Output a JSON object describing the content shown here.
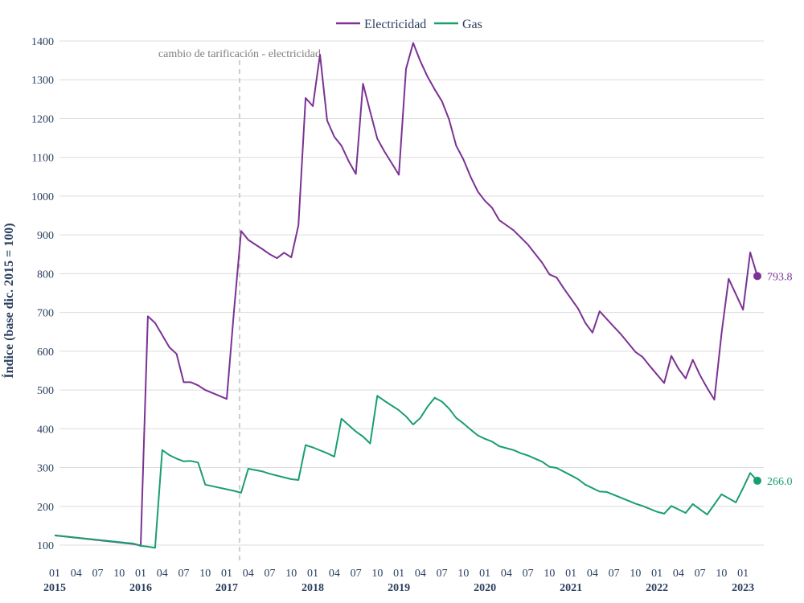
{
  "chart_data": {
    "type": "line",
    "ylabel": "Índice (base dic. 2015 = 100)",
    "ylim": [
      70,
      1420
    ],
    "y_ticks": [
      100,
      200,
      300,
      400,
      500,
      600,
      700,
      800,
      900,
      1000,
      1100,
      1200,
      1300,
      1400
    ],
    "x_start": "2015-01",
    "x_end": "2023-03",
    "x_month_ticks": [
      "01",
      "04",
      "07",
      "10"
    ],
    "x_years": [
      "2015",
      "2016",
      "2017",
      "2018",
      "2019",
      "2020",
      "2021",
      "2022",
      "2023"
    ],
    "grid": true,
    "legend_position": "top-center",
    "annotation": {
      "text": "cambio de tarificación - electricidad",
      "x": "2017-02"
    },
    "series": [
      {
        "name": "Electricidad",
        "color": "#7b3294",
        "end_label": "793.8",
        "points": [
          [
            "2015-01",
            125
          ],
          [
            "2015-12",
            103
          ],
          [
            "2016-01",
            99
          ],
          [
            "2016-02",
            690
          ],
          [
            "2016-03",
            673
          ],
          [
            "2016-05",
            610
          ],
          [
            "2016-06",
            593
          ],
          [
            "2016-07",
            520
          ],
          [
            "2016-08",
            520
          ],
          [
            "2016-09",
            512
          ],
          [
            "2016-10",
            500
          ],
          [
            "2017-01",
            477
          ],
          [
            "2017-02",
            703
          ],
          [
            "2017-03",
            910
          ],
          [
            "2017-04",
            887
          ],
          [
            "2017-06",
            863
          ],
          [
            "2017-07",
            850
          ],
          [
            "2017-08",
            840
          ],
          [
            "2017-09",
            854
          ],
          [
            "2017-10",
            842
          ],
          [
            "2017-11",
            925
          ],
          [
            "2017-12",
            1253
          ],
          [
            "2018-01",
            1232
          ],
          [
            "2018-02",
            1365
          ],
          [
            "2018-03",
            1195
          ],
          [
            "2018-04",
            1153
          ],
          [
            "2018-05",
            1130
          ],
          [
            "2018-06",
            1090
          ],
          [
            "2018-07",
            1057
          ],
          [
            "2018-08",
            1290
          ],
          [
            "2018-09",
            1218
          ],
          [
            "2018-10",
            1148
          ],
          [
            "2018-11",
            1115
          ],
          [
            "2018-12",
            1085
          ],
          [
            "2019-01",
            1055
          ],
          [
            "2019-02",
            1328
          ],
          [
            "2019-03",
            1395
          ],
          [
            "2019-04",
            1348
          ],
          [
            "2019-05",
            1308
          ],
          [
            "2019-06",
            1275
          ],
          [
            "2019-07",
            1245
          ],
          [
            "2019-08",
            1198
          ],
          [
            "2019-09",
            1130
          ],
          [
            "2019-10",
            1095
          ],
          [
            "2019-11",
            1050
          ],
          [
            "2019-12",
            1012
          ],
          [
            "2020-01",
            988
          ],
          [
            "2020-02",
            970
          ],
          [
            "2020-03",
            938
          ],
          [
            "2020-05",
            912
          ],
          [
            "2020-07",
            875
          ],
          [
            "2020-09",
            828
          ],
          [
            "2020-10",
            798
          ],
          [
            "2020-11",
            790
          ],
          [
            "2020-12",
            762
          ],
          [
            "2021-02",
            710
          ],
          [
            "2021-03",
            673
          ],
          [
            "2021-04",
            648
          ],
          [
            "2021-05",
            703
          ],
          [
            "2021-07",
            663
          ],
          [
            "2021-08",
            643
          ],
          [
            "2021-10",
            598
          ],
          [
            "2021-11",
            585
          ],
          [
            "2021-12",
            562
          ],
          [
            "2022-01",
            540
          ],
          [
            "2022-02",
            518
          ],
          [
            "2022-03",
            588
          ],
          [
            "2022-04",
            555
          ],
          [
            "2022-05",
            530
          ],
          [
            "2022-06",
            578
          ],
          [
            "2022-07",
            538
          ],
          [
            "2022-08",
            505
          ],
          [
            "2022-09",
            475
          ],
          [
            "2022-10",
            645
          ],
          [
            "2022-11",
            787
          ],
          [
            "2023-01",
            707
          ],
          [
            "2023-02",
            855
          ],
          [
            "2023-03",
            793.8
          ]
        ]
      },
      {
        "name": "Gas",
        "color": "#1a9e6f",
        "end_label": "266.0",
        "points": [
          [
            "2015-01",
            125
          ],
          [
            "2015-12",
            104
          ],
          [
            "2016-01",
            98
          ],
          [
            "2016-02",
            96
          ],
          [
            "2016-03",
            93
          ],
          [
            "2016-04",
            345
          ],
          [
            "2016-05",
            332
          ],
          [
            "2016-06",
            323
          ],
          [
            "2016-07",
            316
          ],
          [
            "2016-08",
            317
          ],
          [
            "2016-09",
            313
          ],
          [
            "2016-10",
            256
          ],
          [
            "2017-02",
            240
          ],
          [
            "2017-03",
            235
          ],
          [
            "2017-04",
            297
          ],
          [
            "2017-06",
            290
          ],
          [
            "2017-07",
            284
          ],
          [
            "2017-10",
            270
          ],
          [
            "2017-11",
            268
          ],
          [
            "2017-12",
            358
          ],
          [
            "2018-01",
            352
          ],
          [
            "2018-03",
            337
          ],
          [
            "2018-04",
            328
          ],
          [
            "2018-05",
            426
          ],
          [
            "2018-07",
            393
          ],
          [
            "2018-08",
            380
          ],
          [
            "2018-09",
            362
          ],
          [
            "2018-10",
            485
          ],
          [
            "2018-11",
            472
          ],
          [
            "2019-01",
            448
          ],
          [
            "2019-02",
            432
          ],
          [
            "2019-03",
            411
          ],
          [
            "2019-04",
            428
          ],
          [
            "2019-05",
            457
          ],
          [
            "2019-06",
            480
          ],
          [
            "2019-07",
            470
          ],
          [
            "2019-08",
            452
          ],
          [
            "2019-09",
            428
          ],
          [
            "2019-10",
            414
          ],
          [
            "2019-11",
            398
          ],
          [
            "2019-12",
            383
          ],
          [
            "2020-01",
            374
          ],
          [
            "2020-02",
            367
          ],
          [
            "2020-03",
            355
          ],
          [
            "2020-05",
            345
          ],
          [
            "2020-06",
            337
          ],
          [
            "2020-07",
            331
          ],
          [
            "2020-09",
            315
          ],
          [
            "2020-10",
            302
          ],
          [
            "2020-11",
            299
          ],
          [
            "2021-01",
            280
          ],
          [
            "2021-02",
            270
          ],
          [
            "2021-03",
            256
          ],
          [
            "2021-05",
            238
          ],
          [
            "2021-06",
            237
          ],
          [
            "2021-08",
            222
          ],
          [
            "2021-10",
            207
          ],
          [
            "2021-11",
            201
          ],
          [
            "2022-01",
            186
          ],
          [
            "2022-02",
            181
          ],
          [
            "2022-03",
            201
          ],
          [
            "2022-04",
            192
          ],
          [
            "2022-05",
            183
          ],
          [
            "2022-06",
            206
          ],
          [
            "2022-07",
            192
          ],
          [
            "2022-08",
            179
          ],
          [
            "2022-10",
            231
          ],
          [
            "2022-12",
            210
          ],
          [
            "2023-01",
            247
          ],
          [
            "2023-02",
            286
          ],
          [
            "2023-03",
            266.0
          ]
        ]
      }
    ]
  }
}
